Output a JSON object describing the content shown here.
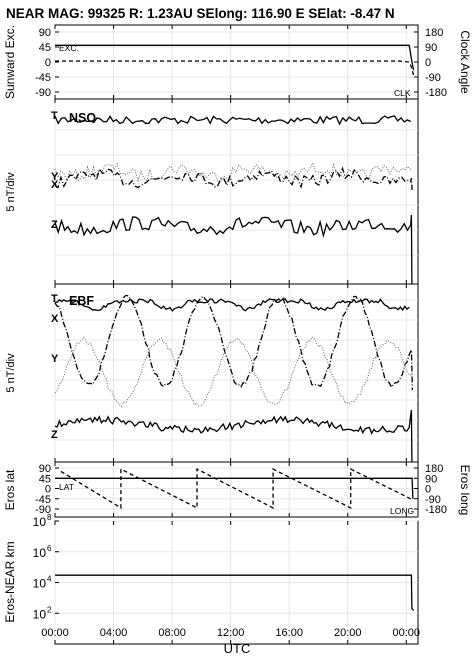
{
  "title": "NEAR MAG: 99325  R: 1.23AU  SElong:  116.90 E  SElat:   -8.47 N",
  "colors": {
    "ink": "#000000",
    "grid": "#e4e4f2",
    "dotted": "#606060"
  },
  "chart_data": [
    {
      "type": "line",
      "panel": "sunward",
      "ylabel_left": "Sunward Exc.",
      "ylabel_right": "Clock Angle",
      "yticks_left": [
        "90",
        "45",
        "0",
        "-45",
        "-90"
      ],
      "yticks_right": [
        "180",
        "90",
        "0",
        "-90",
        "-180"
      ],
      "ylim": [
        -90,
        90
      ],
      "inner_labels": [
        "EXC.",
        "CLK"
      ],
      "series": [
        {
          "name": "EXC.",
          "style": "solid",
          "x": [
            0,
            24.2,
            24.35,
            24.5
          ],
          "y": [
            50,
            50,
            10,
            -25
          ]
        },
        {
          "name": "CLK",
          "style": "dashed",
          "x": [
            0,
            23.5,
            24.2,
            24.35,
            24.5
          ],
          "y": [
            3,
            3,
            0,
            -15,
            -40
          ]
        }
      ]
    },
    {
      "type": "line",
      "panel": "nso",
      "ylabel": "5 nT/div",
      "inner_labels": [
        "NSO"
      ],
      "series_labels": [
        "T",
        "Y",
        "X",
        "Z"
      ],
      "series": [
        {
          "name": "T",
          "style": "solid",
          "approx": "rough level around 8 divisions above Z, small fluctuations"
        },
        {
          "name": "Y",
          "style": "dotted",
          "approx": "fluctuating, crossing X"
        },
        {
          "name": "X",
          "style": "dashdot",
          "approx": "fluctuating, crossing Y"
        },
        {
          "name": "Z",
          "style": "solid",
          "approx": "rough level, ends with drop at ~24:30"
        }
      ]
    },
    {
      "type": "line",
      "panel": "ebf",
      "ylabel": "5 nT/div",
      "inner_labels": [
        "EBF"
      ],
      "series_labels": [
        "T",
        "X",
        "Y",
        "Z"
      ],
      "period_hours": 5.2,
      "series": [
        {
          "name": "T",
          "style": "solid",
          "approx": "near top, dips with X minima"
        },
        {
          "name": "X",
          "style": "dashdot",
          "approx": "large oscillation, period ~5.2 h"
        },
        {
          "name": "Y",
          "style": "dotted",
          "approx": "large oscillation, out of phase with X"
        },
        {
          "name": "Z",
          "style": "solid",
          "approx": "rough level near bottom"
        }
      ]
    },
    {
      "type": "line",
      "panel": "eros_position",
      "ylabel_left": "Eros lat",
      "ylabel_right": "Eros long",
      "yticks_left": [
        "90",
        "45",
        "0",
        "-45",
        "-90"
      ],
      "yticks_right": [
        "180",
        "90",
        "0",
        "-90",
        "-180"
      ],
      "ylim": [
        -90,
        90
      ],
      "inner_labels": [
        "LAT",
        "LONG"
      ],
      "series": [
        {
          "name": "LAT",
          "style": "solid",
          "x": [
            0,
            24.4,
            24.45
          ],
          "y": [
            45,
            45,
            -45
          ]
        },
        {
          "name": "LONG",
          "style": "dashed",
          "x": [
            0.4,
            4.5,
            4.5,
            9.7,
            9.7,
            14.9,
            14.9,
            20.2,
            20.2,
            24.3,
            24.3,
            24.45
          ],
          "y": [
            75,
            -85,
            85,
            -85,
            85,
            -85,
            85,
            -85,
            85,
            -45,
            -45,
            -45
          ]
        }
      ]
    },
    {
      "type": "line",
      "panel": "distance",
      "ylabel": "Eros-NEAR km",
      "yscale": "log",
      "yticks": [
        "10^8",
        "10^6",
        "10^4",
        "10^2"
      ],
      "ylim": [
        1,
        100000000
      ],
      "series": [
        {
          "name": "",
          "style": "solid",
          "x": [
            0,
            24.35,
            24.38,
            24.5
          ],
          "y": [
            30000,
            30000,
            200,
            150
          ]
        }
      ]
    }
  ],
  "x_axis": {
    "label": "UTC",
    "ticks": [
      "00:00",
      "04:00",
      "08:00",
      "12:00",
      "16:00",
      "20:00",
      "00:00"
    ],
    "xlim": [
      0,
      24.8
    ]
  }
}
